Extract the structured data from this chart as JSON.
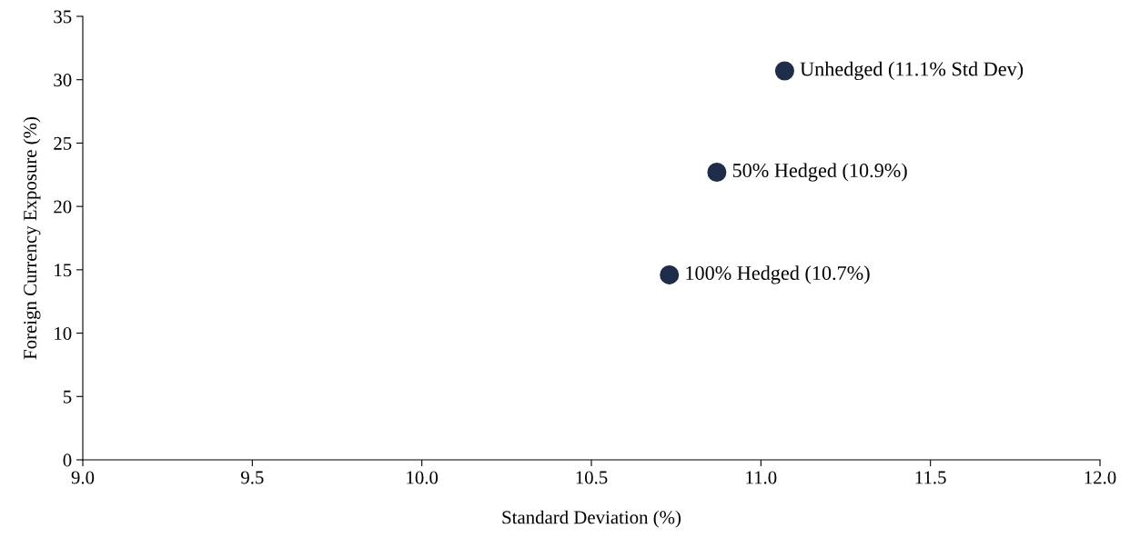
{
  "chart_data": {
    "type": "scatter",
    "xlabel": "Standard Deviation (%)",
    "ylabel": "Foreign Currency Exposure (%)",
    "x": [
      11.07,
      10.87,
      10.73
    ],
    "values": [
      30.7,
      22.7,
      14.6
    ],
    "color": "#1f2d4a",
    "marker": "circle",
    "grid": false,
    "legend": false,
    "xlim": [
      9.0,
      12.0
    ],
    "xticks": [
      {
        "value": 9.0,
        "label": "9.0"
      },
      {
        "value": 9.5,
        "label": "9.5"
      },
      {
        "value": 10.0,
        "label": "10.0"
      },
      {
        "value": 10.5,
        "label": "10.5"
      },
      {
        "value": 11.0,
        "label": "11.0"
      },
      {
        "value": 11.5,
        "label": "11.5"
      },
      {
        "value": 12.0,
        "label": "12.0"
      }
    ],
    "ylim": [
      0,
      35
    ],
    "yticks": [
      0,
      5,
      10,
      15,
      20,
      25,
      30,
      35
    ],
    "annotations": [
      {
        "text": "Unhedged (11.1% Std Dev)",
        "x": 11.07,
        "y": 30.7
      },
      {
        "text": "50% Hedged (10.9%)",
        "x": 10.87,
        "y": 22.7
      },
      {
        "text": "100% Hedged (10.7%)",
        "x": 10.73,
        "y": 14.6
      }
    ]
  }
}
